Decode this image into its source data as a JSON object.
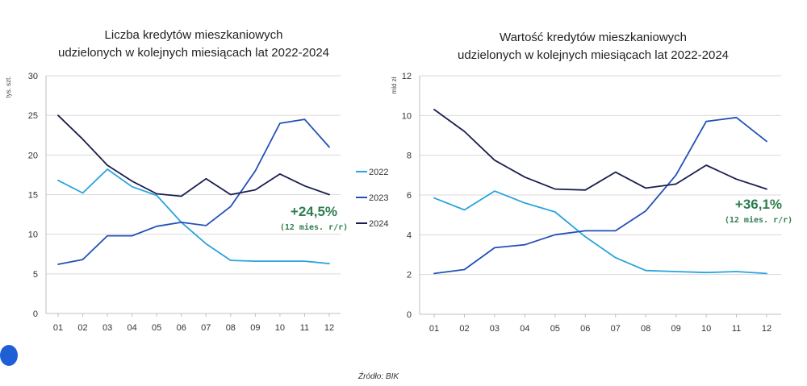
{
  "colors": {
    "2022": "#2aa3dc",
    "2023": "#2250b8",
    "2024": "#1a1f4e",
    "annotation": "#2e7d4f",
    "grid": "#d9d9d9"
  },
  "legend": {
    "items": [
      {
        "key": "2022",
        "label": "2022"
      },
      {
        "key": "2023",
        "label": "2023"
      },
      {
        "key": "2024",
        "label": "2024"
      }
    ]
  },
  "source": "Źródło: BIK",
  "chart_data": [
    {
      "type": "line",
      "title_lines": [
        "Liczba kredytów mieszkaniowych",
        "udzielonych w kolejnych miesiącach lat 2022-2024"
      ],
      "ylabel": "tys. szt.",
      "categories": [
        "01",
        "02",
        "03",
        "04",
        "05",
        "06",
        "07",
        "08",
        "09",
        "10",
        "11",
        "12"
      ],
      "ylim": [
        0,
        30
      ],
      "yticks": [
        0,
        5,
        10,
        15,
        20,
        25,
        30
      ],
      "grid": true,
      "series": [
        {
          "name": "2022",
          "values": [
            16.8,
            15.2,
            18.2,
            16.0,
            14.9,
            11.5,
            8.8,
            6.7,
            6.6,
            6.6,
            6.6,
            6.3
          ]
        },
        {
          "name": "2023",
          "values": [
            6.2,
            6.8,
            9.8,
            9.8,
            11.0,
            11.5,
            11.1,
            13.5,
            18.0,
            24.0,
            24.5,
            21.0
          ]
        },
        {
          "name": "2024",
          "values": [
            25.0,
            22.0,
            18.7,
            16.7,
            15.1,
            14.8,
            17.0,
            15.0,
            15.6,
            17.6,
            16.1,
            15.0
          ]
        }
      ],
      "annotation": {
        "main": "+24,5%",
        "sub": "(12 mies. r/r)"
      }
    },
    {
      "type": "line",
      "title_lines": [
        "Wartość kredytów mieszkaniowych",
        "udzielonych w kolejnych miesiącach lat 2022-2024"
      ],
      "ylabel": "mld zł",
      "categories": [
        "01",
        "02",
        "03",
        "04",
        "05",
        "06",
        "07",
        "08",
        "09",
        "10",
        "11",
        "12"
      ],
      "ylim": [
        0,
        12
      ],
      "yticks": [
        0,
        2,
        4,
        6,
        8,
        10,
        12
      ],
      "grid": true,
      "series": [
        {
          "name": "2022",
          "values": [
            5.85,
            5.25,
            6.2,
            5.6,
            5.15,
            3.9,
            2.85,
            2.2,
            2.15,
            2.1,
            2.15,
            2.05
          ]
        },
        {
          "name": "2023",
          "values": [
            2.05,
            2.25,
            3.35,
            3.5,
            4.0,
            4.2,
            4.2,
            5.2,
            7.0,
            9.7,
            9.9,
            8.7
          ]
        },
        {
          "name": "2024",
          "values": [
            10.3,
            9.2,
            7.75,
            6.9,
            6.3,
            6.25,
            7.15,
            6.35,
            6.55,
            7.5,
            6.8,
            6.3
          ]
        }
      ],
      "annotation": {
        "main": "+36,1%",
        "sub": "(12 mies. r/r)"
      }
    }
  ]
}
